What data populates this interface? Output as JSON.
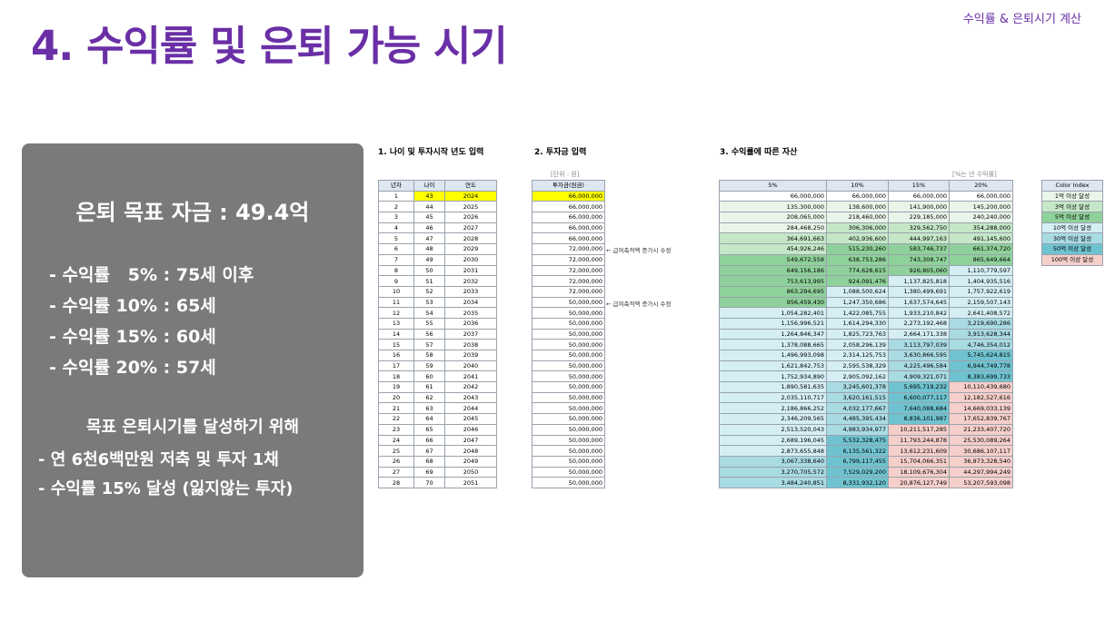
{
  "header": {
    "title": "4. 수익률 및 은퇴 가능 시기",
    "corner": "수익률 & 은퇴시기 계산"
  },
  "panel": {
    "goal": "은퇴 목표 자금 : 49.4억",
    "retire": [
      "- 수익률   5% : 75세 이후",
      "- 수익률 10% : 65세",
      "- 수익률 15% : 60세",
      "- 수익률 20% : 57세"
    ],
    "bottom_heading": "목표 은퇴시기를 달성하기 위해",
    "bottom": [
      "- 연 6천6백만원 저축 및 투자 1채",
      "- 수익률 15% 달성 (잃지않는 투자)"
    ]
  },
  "sections": {
    "s1": "1. 나이 및 투자시작 년도 입력",
    "s2": "2. 투자금 입력",
    "s3": "3. 수익률에 따른 자산"
  },
  "units": {
    "left": "[단위 : 원]",
    "right": "[%는 년 수익률]"
  },
  "notes": [
    "← 급여축적액 증가시 수정",
    "← 급여축적액 증가시 수정"
  ],
  "colors": {
    "c1": "#eaf5e9",
    "c3": "#c5e7c7",
    "c5": "#8fd19a",
    "c10": "#d4eef4",
    "c30": "#a9dbe3",
    "c50": "#6fc3d0",
    "c100": "#f5cfca",
    "yellow": "#ffff00"
  },
  "colorindex": {
    "header": "Color Index",
    "items": [
      {
        "label": "1억 이상 달성",
        "tier": "c1"
      },
      {
        "label": "3억 이상 달성",
        "tier": "c3"
      },
      {
        "label": "5억 이상 달성",
        "tier": "c5"
      },
      {
        "label": "10억 이상 달성",
        "tier": "c10"
      },
      {
        "label": "30억 이상 달성",
        "tier": "c30"
      },
      {
        "label": "50억 이상 달성",
        "tier": "c50"
      },
      {
        "label": "100억 이상 달성",
        "tier": "c100"
      }
    ]
  },
  "table1": {
    "headers": [
      "년차",
      "나이",
      "연도"
    ],
    "rows": [
      [
        "1",
        "43",
        "2024"
      ],
      [
        "2",
        "44",
        "2025"
      ],
      [
        "3",
        "45",
        "2026"
      ],
      [
        "4",
        "46",
        "2027"
      ],
      [
        "5",
        "47",
        "2028"
      ],
      [
        "6",
        "48",
        "2029"
      ],
      [
        "7",
        "49",
        "2030"
      ],
      [
        "8",
        "50",
        "2031"
      ],
      [
        "9",
        "51",
        "2032"
      ],
      [
        "10",
        "52",
        "2033"
      ],
      [
        "11",
        "53",
        "2034"
      ],
      [
        "12",
        "54",
        "2035"
      ],
      [
        "13",
        "55",
        "2036"
      ],
      [
        "14",
        "56",
        "2037"
      ],
      [
        "15",
        "57",
        "2038"
      ],
      [
        "16",
        "58",
        "2039"
      ],
      [
        "17",
        "59",
        "2040"
      ],
      [
        "18",
        "60",
        "2041"
      ],
      [
        "19",
        "61",
        "2042"
      ],
      [
        "20",
        "62",
        "2043"
      ],
      [
        "21",
        "63",
        "2044"
      ],
      [
        "22",
        "64",
        "2045"
      ],
      [
        "23",
        "65",
        "2046"
      ],
      [
        "24",
        "66",
        "2047"
      ],
      [
        "25",
        "67",
        "2048"
      ],
      [
        "26",
        "68",
        "2049"
      ],
      [
        "27",
        "69",
        "2050"
      ],
      [
        "28",
        "70",
        "2051"
      ]
    ]
  },
  "table2": {
    "header": "투자금(원금)",
    "values": [
      "66,000,000",
      "66,000,000",
      "66,000,000",
      "66,000,000",
      "66,000,000",
      "72,000,000",
      "72,000,000",
      "72,000,000",
      "72,000,000",
      "72,000,000",
      "50,000,000",
      "50,000,000",
      "50,000,000",
      "50,000,000",
      "50,000,000",
      "50,000,000",
      "50,000,000",
      "50,000,000",
      "50,000,000",
      "50,000,000",
      "50,000,000",
      "50,000,000",
      "50,000,000",
      "50,000,000",
      "50,000,000",
      "50,000,000",
      "50,000,000",
      "50,000,000"
    ]
  },
  "table3": {
    "headers": [
      "5%",
      "10%",
      "15%",
      "20%"
    ],
    "rows": [
      [
        {
          "v": "66,000,000",
          "t": "c0"
        },
        {
          "v": "66,000,000",
          "t": "c0"
        },
        {
          "v": "66,000,000",
          "t": "c0"
        },
        {
          "v": "66,000,000",
          "t": "c0"
        }
      ],
      [
        {
          "v": "135,300,000",
          "t": "c1"
        },
        {
          "v": "138,600,000",
          "t": "c1"
        },
        {
          "v": "141,900,000",
          "t": "c1"
        },
        {
          "v": "145,200,000",
          "t": "c1"
        }
      ],
      [
        {
          "v": "208,065,000",
          "t": "c1"
        },
        {
          "v": "218,460,000",
          "t": "c1"
        },
        {
          "v": "229,185,000",
          "t": "c1"
        },
        {
          "v": "240,240,000",
          "t": "c1"
        }
      ],
      [
        {
          "v": "284,468,250",
          "t": "c1"
        },
        {
          "v": "306,306,000",
          "t": "c3"
        },
        {
          "v": "329,562,750",
          "t": "c3"
        },
        {
          "v": "354,288,000",
          "t": "c3"
        }
      ],
      [
        {
          "v": "364,691,663",
          "t": "c3"
        },
        {
          "v": "402,936,600",
          "t": "c3"
        },
        {
          "v": "444,997,163",
          "t": "c3"
        },
        {
          "v": "491,145,600",
          "t": "c3"
        }
      ],
      [
        {
          "v": "454,926,246",
          "t": "c3"
        },
        {
          "v": "515,230,260",
          "t": "c5"
        },
        {
          "v": "583,746,737",
          "t": "c5"
        },
        {
          "v": "661,374,720",
          "t": "c5"
        }
      ],
      [
        {
          "v": "549,672,558",
          "t": "c5"
        },
        {
          "v": "638,753,286",
          "t": "c5"
        },
        {
          "v": "743,308,747",
          "t": "c5"
        },
        {
          "v": "865,649,664",
          "t": "c5"
        }
      ],
      [
        {
          "v": "649,156,186",
          "t": "c5"
        },
        {
          "v": "774,628,615",
          "t": "c5"
        },
        {
          "v": "926,805,060",
          "t": "c5"
        },
        {
          "v": "1,110,779,597",
          "t": "c10"
        }
      ],
      [
        {
          "v": "753,613,995",
          "t": "c5"
        },
        {
          "v": "924,091,476",
          "t": "c5"
        },
        {
          "v": "1,137,825,818",
          "t": "c10"
        },
        {
          "v": "1,404,935,516",
          "t": "c10"
        }
      ],
      [
        {
          "v": "863,294,695",
          "t": "c5"
        },
        {
          "v": "1,088,500,624",
          "t": "c10"
        },
        {
          "v": "1,380,499,691",
          "t": "c10"
        },
        {
          "v": "1,757,922,619",
          "t": "c10"
        }
      ],
      [
        {
          "v": "956,459,430",
          "t": "c5"
        },
        {
          "v": "1,247,350,686",
          "t": "c10"
        },
        {
          "v": "1,637,574,645",
          "t": "c10"
        },
        {
          "v": "2,159,507,143",
          "t": "c10"
        }
      ],
      [
        {
          "v": "1,054,282,401",
          "t": "c10"
        },
        {
          "v": "1,422,085,755",
          "t": "c10"
        },
        {
          "v": "1,933,210,842",
          "t": "c10"
        },
        {
          "v": "2,641,408,572",
          "t": "c10"
        }
      ],
      [
        {
          "v": "1,156,996,521",
          "t": "c10"
        },
        {
          "v": "1,614,294,330",
          "t": "c10"
        },
        {
          "v": "2,273,192,468",
          "t": "c10"
        },
        {
          "v": "3,219,690,286",
          "t": "c30"
        }
      ],
      [
        {
          "v": "1,264,846,347",
          "t": "c10"
        },
        {
          "v": "1,825,723,763",
          "t": "c10"
        },
        {
          "v": "2,664,171,338",
          "t": "c10"
        },
        {
          "v": "3,913,628,344",
          "t": "c30"
        }
      ],
      [
        {
          "v": "1,378,088,665",
          "t": "c10"
        },
        {
          "v": "2,058,296,139",
          "t": "c10"
        },
        {
          "v": "3,113,797,039",
          "t": "c30"
        },
        {
          "v": "4,746,354,012",
          "t": "c30"
        }
      ],
      [
        {
          "v": "1,496,993,098",
          "t": "c10"
        },
        {
          "v": "2,314,125,753",
          "t": "c10"
        },
        {
          "v": "3,630,866,595",
          "t": "c30"
        },
        {
          "v": "5,745,624,815",
          "t": "c50"
        }
      ],
      [
        {
          "v": "1,621,842,753",
          "t": "c10"
        },
        {
          "v": "2,595,538,329",
          "t": "c10"
        },
        {
          "v": "4,225,496,584",
          "t": "c30"
        },
        {
          "v": "6,944,749,778",
          "t": "c50"
        }
      ],
      [
        {
          "v": "1,752,934,890",
          "t": "c10"
        },
        {
          "v": "2,905,092,162",
          "t": "c10"
        },
        {
          "v": "4,909,321,071",
          "t": "c30"
        },
        {
          "v": "8,383,699,733",
          "t": "c50"
        }
      ],
      [
        {
          "v": "1,890,581,635",
          "t": "c10"
        },
        {
          "v": "3,245,601,378",
          "t": "c30"
        },
        {
          "v": "5,695,719,232",
          "t": "c50"
        },
        {
          "v": "10,110,439,680",
          "t": "c100"
        }
      ],
      [
        {
          "v": "2,035,110,717",
          "t": "c10"
        },
        {
          "v": "3,620,161,515",
          "t": "c30"
        },
        {
          "v": "6,600,077,117",
          "t": "c50"
        },
        {
          "v": "12,182,527,616",
          "t": "c100"
        }
      ],
      [
        {
          "v": "2,186,866,252",
          "t": "c10"
        },
        {
          "v": "4,032,177,667",
          "t": "c30"
        },
        {
          "v": "7,640,088,684",
          "t": "c50"
        },
        {
          "v": "14,669,033,139",
          "t": "c100"
        }
      ],
      [
        {
          "v": "2,346,209,565",
          "t": "c10"
        },
        {
          "v": "4,485,395,434",
          "t": "c30"
        },
        {
          "v": "8,836,101,987",
          "t": "c50"
        },
        {
          "v": "17,652,839,767",
          "t": "c100"
        }
      ],
      [
        {
          "v": "2,513,520,043",
          "t": "c10"
        },
        {
          "v": "4,983,934,977",
          "t": "c30"
        },
        {
          "v": "10,211,517,285",
          "t": "c100"
        },
        {
          "v": "21,233,407,720",
          "t": "c100"
        }
      ],
      [
        {
          "v": "2,689,196,045",
          "t": "c10"
        },
        {
          "v": "5,532,328,475",
          "t": "c50"
        },
        {
          "v": "11,793,244,878",
          "t": "c100"
        },
        {
          "v": "25,530,089,264",
          "t": "c100"
        }
      ],
      [
        {
          "v": "2,873,655,848",
          "t": "c10"
        },
        {
          "v": "6,135,561,322",
          "t": "c50"
        },
        {
          "v": "13,612,231,609",
          "t": "c100"
        },
        {
          "v": "30,686,107,117",
          "t": "c100"
        }
      ],
      [
        {
          "v": "3,067,338,640",
          "t": "c30"
        },
        {
          "v": "6,799,117,455",
          "t": "c50"
        },
        {
          "v": "15,704,066,351",
          "t": "c100"
        },
        {
          "v": "36,873,328,540",
          "t": "c100"
        }
      ],
      [
        {
          "v": "3,270,705,572",
          "t": "c30"
        },
        {
          "v": "7,529,029,200",
          "t": "c50"
        },
        {
          "v": "18,109,676,304",
          "t": "c100"
        },
        {
          "v": "44,297,994,249",
          "t": "c100"
        }
      ],
      [
        {
          "v": "3,484,240,851",
          "t": "c30"
        },
        {
          "v": "8,331,932,120",
          "t": "c50"
        },
        {
          "v": "20,876,127,749",
          "t": "c100"
        },
        {
          "v": "53,207,593,098",
          "t": "c100"
        }
      ]
    ]
  }
}
